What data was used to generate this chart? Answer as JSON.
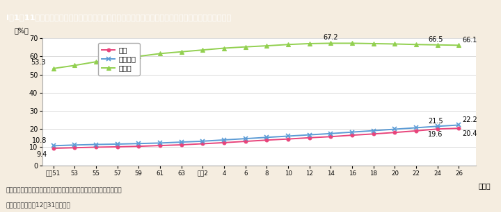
{
  "title": "I－1－11図　医療施設従事医師，同歯科医師，薬局・医療施設従事薬剤師に占める女性の割合の推移",
  "title_bg_color": "#29b5c8",
  "title_text_color": "#ffffff",
  "bg_color": "#f5ede0",
  "plot_bg_color": "#ffffff",
  "ylabel": "（%）",
  "xlabel_unit": "（年）",
  "ylim": [
    0,
    70
  ],
  "yticks": [
    0,
    10,
    20,
    30,
    40,
    50,
    60,
    70
  ],
  "x_labels": [
    "昭和51",
    "53",
    "55",
    "57",
    "59",
    "61",
    "63",
    "平成2",
    "4",
    "6",
    "8",
    "10",
    "12",
    "14",
    "16",
    "18",
    "20",
    "22",
    "24",
    "26"
  ],
  "x_numeric": [
    0,
    1,
    2,
    3,
    4,
    5,
    6,
    7,
    8,
    9,
    10,
    11,
    12,
    13,
    14,
    15,
    16,
    17,
    18,
    19
  ],
  "ishi": [
    9.4,
    9.7,
    10.0,
    10.2,
    10.5,
    10.9,
    11.3,
    11.9,
    12.5,
    13.2,
    13.9,
    14.5,
    15.2,
    15.8,
    16.6,
    17.3,
    18.1,
    19.0,
    20.0,
    20.4
  ],
  "shika": [
    10.8,
    11.2,
    11.5,
    11.7,
    12.0,
    12.3,
    12.8,
    13.3,
    14.0,
    14.7,
    15.4,
    16.1,
    16.8,
    17.5,
    18.3,
    19.1,
    19.9,
    20.7,
    21.5,
    22.2
  ],
  "yakuzaishi": [
    53.3,
    55.0,
    57.0,
    58.5,
    60.0,
    61.5,
    62.5,
    63.5,
    64.5,
    65.2,
    65.8,
    66.5,
    67.0,
    67.2,
    67.2,
    67.0,
    66.8,
    66.5,
    66.3,
    66.1
  ],
  "ishi_color": "#e8437a",
  "shika_color": "#5b9bd5",
  "yaku_color": "#92d050",
  "legend_labels": [
    "医師",
    "歯科医師",
    "薬剤師"
  ],
  "footnote1": "（備考）１．厚生労働省「医師・歯科医師・薬剤師調査」より作成。",
  "footnote2": "　　　　２．各年12月31日現在。"
}
